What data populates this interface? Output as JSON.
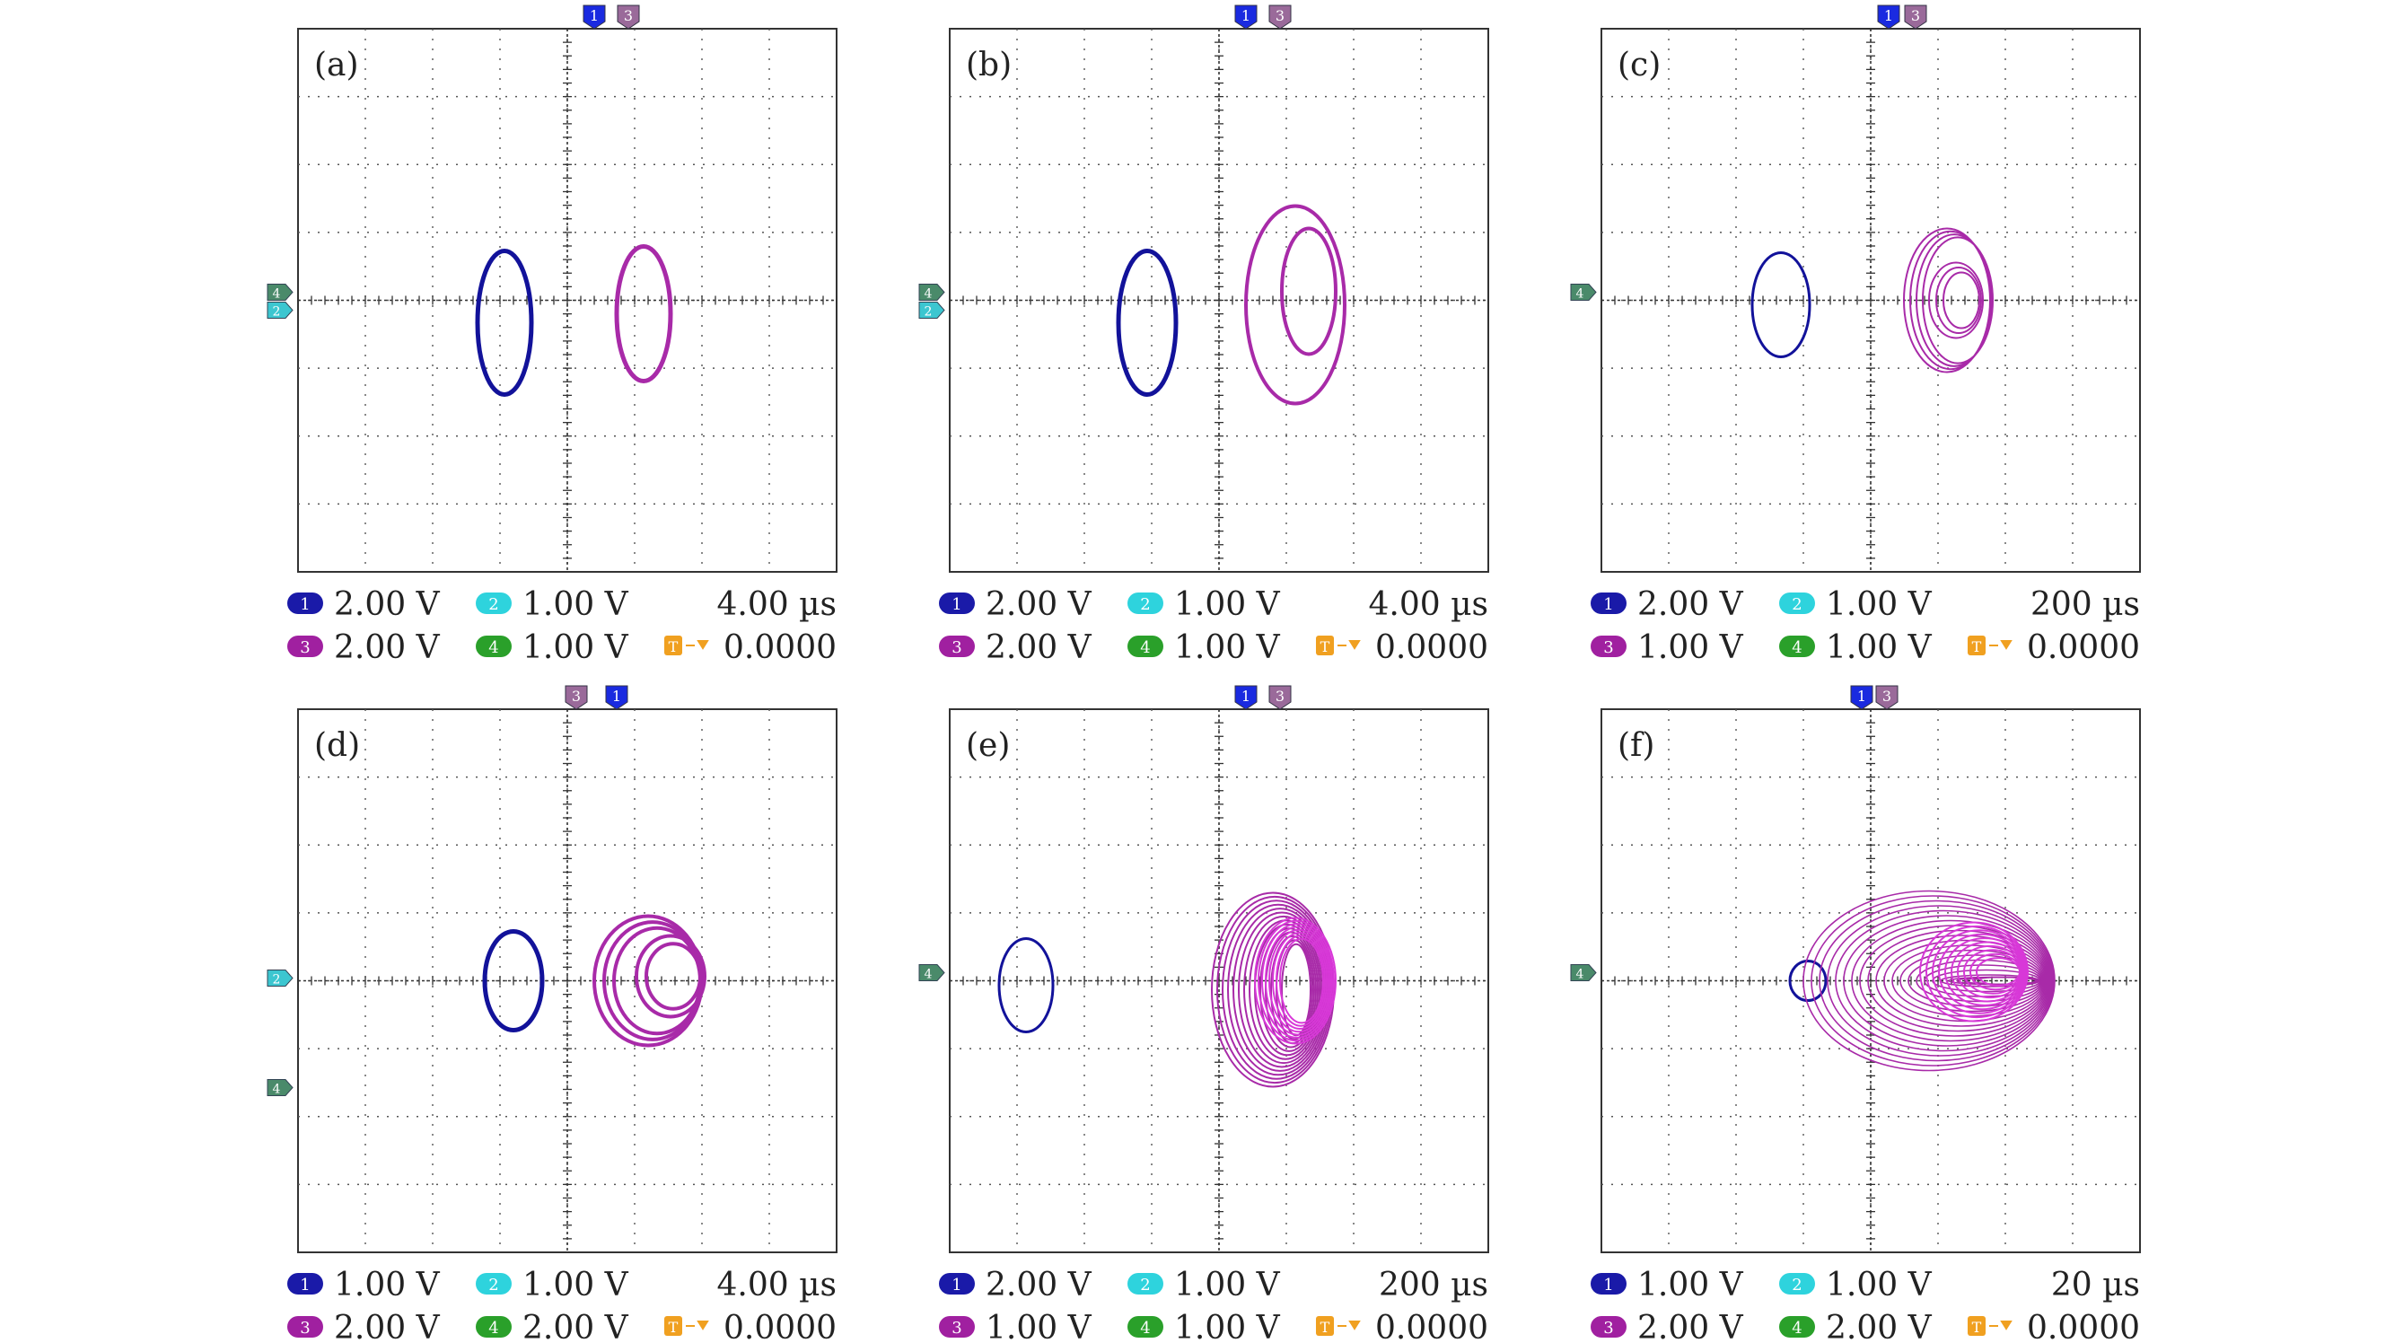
{
  "colors": {
    "ch1": "#1a1aa8",
    "ch2": "#2ed3dd",
    "ch3": "#a020a0",
    "ch4": "#2aa02a",
    "trig": "#f0a020",
    "trace_blue": "#12129a",
    "trace_purple": "#a82aa8",
    "trace_magenta": "#d838d8",
    "grid": "#555555",
    "frame": "#333333"
  },
  "icons": {
    "channel_badge": "rounded-pill-badge",
    "trigger": "trigger-icon",
    "marker": "channel-marker-tab"
  },
  "panels": [
    {
      "label": "(a)",
      "top_markers": [
        "1",
        "3"
      ],
      "left_markers": [
        "4",
        "2"
      ],
      "readouts": {
        "ch1": "2.00 V",
        "ch2": "1.00 V",
        "time": "4.00 µs",
        "ch3": "2.00 V",
        "ch4": "1.00 V",
        "trigger": "0.0000"
      }
    },
    {
      "label": "(b)",
      "top_markers": [
        "1",
        "3"
      ],
      "left_markers": [
        "4",
        "2"
      ],
      "readouts": {
        "ch1": "2.00 V",
        "ch2": "1.00 V",
        "time": "4.00 µs",
        "ch3": "2.00 V",
        "ch4": "1.00 V",
        "trigger": "0.0000"
      }
    },
    {
      "label": "(c)",
      "top_markers": [
        "1",
        "3"
      ],
      "left_markers": [
        "4"
      ],
      "readouts": {
        "ch1": "2.00 V",
        "ch2": "1.00 V",
        "time": "200 µs",
        "ch3": "1.00 V",
        "ch4": "1.00 V",
        "trigger": "0.0000"
      }
    },
    {
      "label": "(d)",
      "top_markers": [
        "3",
        "1"
      ],
      "left_markers": [
        "2",
        "4"
      ],
      "readouts": {
        "ch1": "1.00 V",
        "ch2": "1.00 V",
        "time": "4.00 µs",
        "ch3": "2.00 V",
        "ch4": "2.00 V",
        "trigger": "0.0000"
      }
    },
    {
      "label": "(e)",
      "top_markers": [
        "1",
        "3"
      ],
      "left_markers": [
        "4"
      ],
      "readouts": {
        "ch1": "2.00 V",
        "ch2": "1.00 V",
        "time": "200 µs",
        "ch3": "1.00 V",
        "ch4": "1.00 V",
        "trigger": "0.0000"
      }
    },
    {
      "label": "(f)",
      "top_markers": [
        "1",
        "3"
      ],
      "left_markers": [
        "4"
      ],
      "readouts": {
        "ch1": "1.00 V",
        "ch2": "1.00 V",
        "time": "20 µs",
        "ch3": "2.00 V",
        "ch4": "2.00 V",
        "trigger": "0.0000"
      }
    }
  ]
}
